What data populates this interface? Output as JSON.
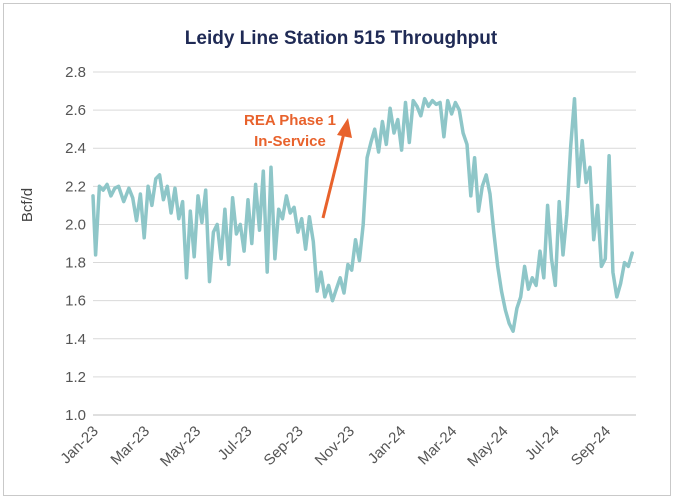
{
  "chart_data": {
    "type": "line",
    "title": "Leidy Line Station 515 Throughput",
    "xlabel": "",
    "ylabel": "Bcf/d",
    "ylim": [
      1.0,
      2.8
    ],
    "yticks": [
      "1.0",
      "1.2",
      "1.4",
      "1.6",
      "1.8",
      "2.0",
      "2.2",
      "2.4",
      "2.6",
      "2.8"
    ],
    "xticks": [
      "Jan-23",
      "Mar-23",
      "May-23",
      "Jul-23",
      "Sep-23",
      "Nov-23",
      "Jan-24",
      "Mar-24",
      "May-24",
      "Jul-24",
      "Sep-24"
    ],
    "series": [
      {
        "name": "Station 515 Throughput",
        "color": "#8ec6c8",
        "x_months": [
          0,
          0.1,
          0.25,
          0.4,
          0.55,
          0.7,
          0.85,
          1.0,
          1.2,
          1.4,
          1.55,
          1.7,
          1.85,
          2.0,
          2.15,
          2.3,
          2.45,
          2.6,
          2.75,
          2.9,
          3.05,
          3.2,
          3.35,
          3.5,
          3.65,
          3.8,
          3.95,
          4.1,
          4.25,
          4.4,
          4.55,
          4.7,
          4.85,
          5.0,
          5.15,
          5.3,
          5.45,
          5.6,
          5.75,
          5.9,
          6.05,
          6.2,
          6.35,
          6.5,
          6.65,
          6.8,
          6.95,
          7.1,
          7.25,
          7.4,
          7.55,
          7.7,
          7.85,
          8.0,
          8.15,
          8.3,
          8.45,
          8.6,
          8.75,
          8.9,
          9.05,
          9.2,
          9.35,
          9.5,
          9.65,
          9.8,
          9.95,
          10.1,
          10.25,
          10.4,
          10.55,
          10.7,
          10.85,
          11.0,
          11.15,
          11.3,
          11.45,
          11.6,
          11.75,
          11.9,
          12.05,
          12.2,
          12.35,
          12.5,
          12.65,
          12.8,
          12.95,
          13.1,
          13.25,
          13.4,
          13.55,
          13.7,
          13.85,
          14.0,
          14.15,
          14.3,
          14.45,
          14.6,
          14.75,
          14.9,
          15.05,
          15.2,
          15.35,
          15.5,
          15.65,
          15.8,
          15.95,
          16.1,
          16.25,
          16.4,
          16.55,
          16.7,
          16.85,
          17.0,
          17.15,
          17.3,
          17.45,
          17.6,
          17.75,
          17.9,
          18.05,
          18.2,
          18.35,
          18.5,
          18.65,
          18.8,
          18.95,
          19.1,
          19.25,
          19.4,
          19.55,
          19.7,
          19.85,
          20.0,
          20.15,
          20.3,
          20.45,
          20.6,
          20.75,
          20.9,
          21.05
        ],
        "values": [
          2.15,
          1.84,
          2.2,
          2.18,
          2.21,
          2.15,
          2.19,
          2.2,
          2.12,
          2.19,
          2.14,
          2.02,
          2.16,
          1.93,
          2.2,
          2.1,
          2.24,
          2.26,
          2.13,
          2.2,
          2.06,
          2.19,
          2.03,
          2.12,
          1.72,
          2.07,
          1.83,
          2.15,
          2.01,
          2.18,
          1.7,
          1.96,
          2.0,
          1.82,
          2.08,
          1.79,
          2.14,
          1.95,
          2.0,
          1.86,
          2.13,
          1.9,
          2.21,
          1.97,
          2.28,
          1.75,
          2.3,
          1.82,
          2.08,
          2.03,
          2.15,
          2.06,
          2.09,
          1.96,
          2.03,
          1.87,
          2.04,
          1.91,
          1.65,
          1.75,
          1.62,
          1.68,
          1.6,
          1.66,
          1.72,
          1.64,
          1.79,
          1.76,
          1.92,
          1.81,
          2.0,
          2.35,
          2.43,
          2.5,
          2.38,
          2.54,
          2.42,
          2.61,
          2.48,
          2.55,
          2.39,
          2.64,
          2.43,
          2.65,
          2.62,
          2.57,
          2.66,
          2.62,
          2.65,
          2.63,
          2.64,
          2.46,
          2.65,
          2.58,
          2.64,
          2.6,
          2.48,
          2.42,
          2.15,
          2.35,
          2.07,
          2.2,
          2.26,
          2.16,
          1.96,
          1.78,
          1.65,
          1.55,
          1.48,
          1.44,
          1.56,
          1.62,
          1.78,
          1.66,
          1.72,
          1.68,
          1.86,
          1.72,
          2.1,
          1.82,
          1.68,
          2.12,
          1.84,
          2.05,
          2.41,
          2.66,
          2.2,
          2.44,
          2.22,
          2.3,
          1.92,
          2.1,
          1.78,
          1.82,
          2.36,
          1.75,
          1.62,
          1.69,
          1.8,
          1.78,
          1.85
        ]
      }
    ],
    "annotations": [
      {
        "line1": "REA Phase 1",
        "line2": "In-Service",
        "color": "#e8622c"
      }
    ]
  }
}
